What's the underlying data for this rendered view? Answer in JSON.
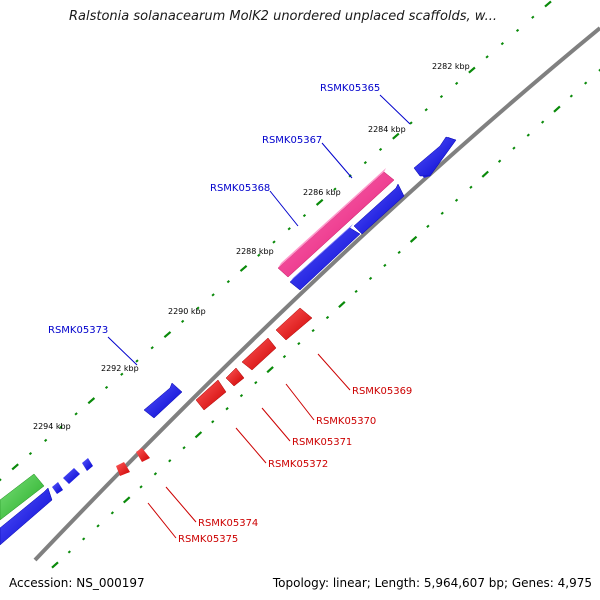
{
  "title": "Ralstonia solanacearum MolK2 unordered unplaced scaffolds, w...",
  "footer": {
    "accession": "Accession: NS_000197",
    "summary": "Topology: linear; Length: 5,964,607 bp; Genes: 4,975"
  },
  "colors": {
    "backbone": "#808080",
    "tick": "#0a8a0a",
    "forward_label": "#0000cc",
    "reverse_label": "#cc0000",
    "blue_gene": "#0000ee",
    "red_gene": "#ee0000",
    "pink_gene": "#ee2288",
    "green_gene": "#33cc33"
  },
  "scale": {
    "unit": "kbp",
    "ticks": [
      {
        "label": "2282 kbp"
      },
      {
        "label": "2284 kbp"
      },
      {
        "label": "2286 kbp"
      },
      {
        "label": "2288 kbp"
      },
      {
        "label": "2290 kbp"
      },
      {
        "label": "2292 kbp"
      },
      {
        "label": "2294 kbp"
      }
    ]
  },
  "genes": {
    "forward": [
      {
        "name": "RSMK05365",
        "color": "blue"
      },
      {
        "name": "RSMK05367",
        "color": "pink"
      },
      {
        "name": "RSMK05368",
        "color": "blue"
      },
      {
        "name": "RSMK05373",
        "color": "blue"
      }
    ],
    "reverse": [
      {
        "name": "RSMK05369"
      },
      {
        "name": "RSMK05370"
      },
      {
        "name": "RSMK05371"
      },
      {
        "name": "RSMK05372"
      },
      {
        "name": "RSMK05374"
      },
      {
        "name": "RSMK05375"
      }
    ]
  }
}
